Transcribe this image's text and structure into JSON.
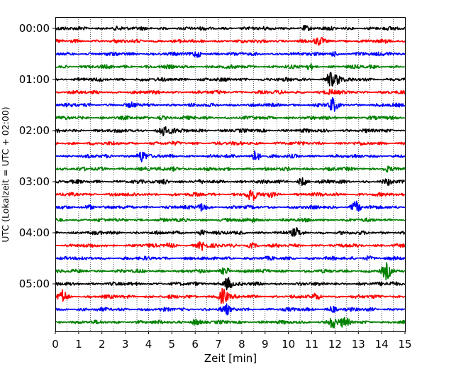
{
  "chart_data": {
    "type": "line",
    "title": "",
    "xlabel": "Zeit  [min]",
    "ylabel": "UTC (Lokalzeit = UTC + 02:00)",
    "xlim": [
      0,
      15
    ],
    "x_ticks": [
      "0",
      "1",
      "2",
      "3",
      "4",
      "5",
      "6",
      "7",
      "8",
      "9",
      "10",
      "11",
      "12",
      "13",
      "14",
      "15"
    ],
    "y_tick_labels": [
      "00:00",
      "01:00",
      "02:00",
      "03:00",
      "04:00",
      "05:00"
    ],
    "trace_start_minutes": [
      0,
      15,
      30,
      45,
      60,
      75,
      90,
      105,
      120,
      135,
      150,
      165,
      180,
      195,
      210,
      225,
      240,
      255,
      270,
      285,
      300,
      315,
      330,
      345
    ],
    "trace_colors": [
      "#000000",
      "#ff0000",
      "#0000ff",
      "#008000"
    ],
    "grid": "x-dotted",
    "legend": "none",
    "bursts": [
      {
        "trace": 0,
        "x": 2.6,
        "amp": 0.3
      },
      {
        "trace": 0,
        "x": 10.7,
        "amp": 0.45
      },
      {
        "trace": 1,
        "x": 11.3,
        "amp": 0.8
      },
      {
        "trace": 2,
        "x": 6.1,
        "amp": 0.6
      },
      {
        "trace": 2,
        "x": 11.9,
        "amp": 0.5
      },
      {
        "trace": 2,
        "x": 14.3,
        "amp": 0.35
      },
      {
        "trace": 3,
        "x": 10.9,
        "amp": 0.4
      },
      {
        "trace": 4,
        "x": 11.8,
        "amp": 1.5
      },
      {
        "trace": 4,
        "x": 12.1,
        "amp": 1.0
      },
      {
        "trace": 5,
        "x": 11.8,
        "amp": 0.45
      },
      {
        "trace": 6,
        "x": 11.9,
        "amp": 1.4
      },
      {
        "trace": 6,
        "x": 3.3,
        "amp": 0.3
      },
      {
        "trace": 7,
        "x": 4.5,
        "amp": 0.4
      },
      {
        "trace": 8,
        "x": 4.6,
        "amp": 1.1
      },
      {
        "trace": 8,
        "x": 5.0,
        "amp": 0.5
      },
      {
        "trace": 10,
        "x": 3.7,
        "amp": 1.3
      },
      {
        "trace": 10,
        "x": 8.6,
        "amp": 1.2
      },
      {
        "trace": 11,
        "x": 5.1,
        "amp": 0.45
      },
      {
        "trace": 11,
        "x": 14.2,
        "amp": 0.5
      },
      {
        "trace": 12,
        "x": 4.7,
        "amp": 0.55
      },
      {
        "trace": 12,
        "x": 10.6,
        "amp": 0.8
      },
      {
        "trace": 12,
        "x": 14.3,
        "amp": 0.5
      },
      {
        "trace": 13,
        "x": 8.4,
        "amp": 1.5
      },
      {
        "trace": 13,
        "x": 9.2,
        "amp": 0.5
      },
      {
        "trace": 14,
        "x": 1.5,
        "amp": 0.45
      },
      {
        "trace": 14,
        "x": 6.3,
        "amp": 0.9
      },
      {
        "trace": 14,
        "x": 12.9,
        "amp": 1.2
      },
      {
        "trace": 15,
        "x": 8.5,
        "amp": 0.4
      },
      {
        "trace": 16,
        "x": 10.3,
        "amp": 0.9
      },
      {
        "trace": 16,
        "x": 6.3,
        "amp": 0.5
      },
      {
        "trace": 17,
        "x": 6.3,
        "amp": 1.0
      },
      {
        "trace": 17,
        "x": 4.9,
        "amp": 0.4
      },
      {
        "trace": 17,
        "x": 8.4,
        "amp": 0.5
      },
      {
        "trace": 18,
        "x": 13.4,
        "amp": 0.45
      },
      {
        "trace": 19,
        "x": 14.2,
        "amp": 1.6
      },
      {
        "trace": 19,
        "x": 7.3,
        "amp": 0.8
      },
      {
        "trace": 20,
        "x": 7.4,
        "amp": 1.5
      },
      {
        "trace": 20,
        "x": 14.5,
        "amp": 0.45
      },
      {
        "trace": 21,
        "x": 0.3,
        "amp": 1.4
      },
      {
        "trace": 21,
        "x": 7.2,
        "amp": 1.9
      },
      {
        "trace": 21,
        "x": 11.2,
        "amp": 0.5
      },
      {
        "trace": 22,
        "x": 7.3,
        "amp": 1.0
      },
      {
        "trace": 22,
        "x": 11.9,
        "amp": 0.6
      },
      {
        "trace": 23,
        "x": 11.9,
        "amp": 1.3
      },
      {
        "trace": 23,
        "x": 12.4,
        "amp": 1.0
      },
      {
        "trace": 23,
        "x": 6.0,
        "amp": 0.7
      }
    ]
  }
}
